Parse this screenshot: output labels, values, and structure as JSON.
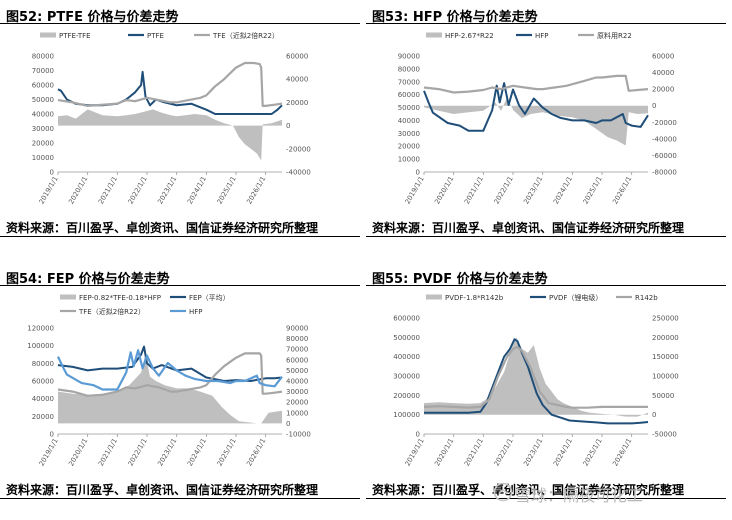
{
  "panels": [
    {
      "title": "图52: PTFE 价格与价差走势",
      "source": "资料来源：百川盈孚、卓创资讯、国信证券经济研究所整理"
    },
    {
      "title": "图53: HFP 价格与价差走势",
      "source": "资料来源：百川盈孚、卓创资讯、国信证券经济研究所整理"
    },
    {
      "title": "图54: FEP 价格与价差走势",
      "source": "资料来源：百川盈孚、卓创资讯、国信证券经济研究所整理"
    },
    {
      "title": "图55: PVDF 价格与价差走势",
      "source": "资料来源：百川盈孚、卓创资讯、国信证券经济研究所整理"
    }
  ],
  "watermark": "雪球：隔夜可化工",
  "colors": {
    "navy": "#1f4e79",
    "gray_area": "#bfbfbf",
    "gray_line": "#a6a6a6",
    "light_blue": "#5b9bd5"
  },
  "chart_data": [
    {
      "type": "area",
      "x_ticks": [
        "2019/1/1",
        "2020/1/1",
        "2021/1/1",
        "2022/1/1",
        "2023/1/1",
        "2024/1/1",
        "2025/1/1",
        "2026/1/1"
      ],
      "left_axis": {
        "ticks": [
          0,
          10000,
          20000,
          30000,
          40000,
          50000,
          60000,
          70000,
          80000
        ],
        "ylim": [
          0,
          80000
        ]
      },
      "right_axis": {
        "ticks": [
          -40000,
          -20000,
          0,
          20000,
          40000,
          60000
        ],
        "ylim": [
          -40000,
          60000
        ]
      },
      "legend_position": "top",
      "x_range": [
        2019.0,
        2026.55
      ],
      "series": [
        {
          "name": "PTFE-TFE",
          "style": "area",
          "axis": "right",
          "x": [
            2019.0,
            2019.3,
            2019.6,
            2020.0,
            2020.5,
            2021.0,
            2021.3,
            2021.6,
            2021.9,
            2022.2,
            2022.5,
            2022.8,
            2023.0,
            2023.3,
            2023.6,
            2024.0,
            2024.3,
            2024.6,
            2024.9,
            2025.1,
            2025.3,
            2025.5,
            2025.7,
            2025.85,
            2025.9,
            2026.2,
            2026.55
          ],
          "values": [
            8000,
            9000,
            6000,
            14000,
            9000,
            8000,
            9000,
            10000,
            12000,
            14000,
            11000,
            9000,
            8000,
            9000,
            10000,
            9000,
            5000,
            2000,
            0,
            -10000,
            -16000,
            -20000,
            -24000,
            -30000,
            1000,
            2000,
            5000
          ]
        },
        {
          "name": "PTFE",
          "style": "line",
          "axis": "left",
          "x": [
            2019.0,
            2019.1,
            2019.3,
            2019.6,
            2020.0,
            2020.5,
            2021.0,
            2021.3,
            2021.6,
            2021.8,
            2021.85,
            2021.95,
            2022.1,
            2022.3,
            2022.6,
            2023.0,
            2023.5,
            2024.0,
            2024.3,
            2024.6,
            2025.0,
            2025.3,
            2025.6,
            2025.9,
            2026.2,
            2026.4,
            2026.55
          ],
          "values": [
            57000,
            56000,
            50000,
            47000,
            46000,
            46000,
            47000,
            50000,
            55000,
            60000,
            69000,
            52000,
            46000,
            50000,
            48000,
            46000,
            47000,
            43000,
            40000,
            40000,
            40000,
            40000,
            40000,
            40000,
            40000,
            43000,
            46000
          ]
        },
        {
          "name": "TFE（近拟2倍R22）",
          "style": "line",
          "axis": "right",
          "x": [
            2019.0,
            2019.5,
            2020.0,
            2020.5,
            2021.0,
            2021.3,
            2021.6,
            2022.0,
            2022.4,
            2022.8,
            2023.0,
            2023.4,
            2023.8,
            2024.0,
            2024.3,
            2024.6,
            2025.0,
            2025.3,
            2025.6,
            2025.8,
            2025.85,
            2025.9,
            2026.0,
            2026.3,
            2026.55
          ],
          "values": [
            22000,
            20000,
            17000,
            18000,
            19000,
            22000,
            21000,
            24000,
            22000,
            20000,
            20000,
            22000,
            24000,
            26000,
            34000,
            40000,
            50000,
            54000,
            54000,
            53000,
            50000,
            17000,
            17000,
            18000,
            19000
          ]
        }
      ]
    },
    {
      "type": "area",
      "x_ticks": [
        "2019/1/1",
        "2020/1/1",
        "2021/1/1",
        "2022/1/1",
        "2023/1/1",
        "2024/1/1",
        "2025/1/1",
        "2026/1/1"
      ],
      "left_axis": {
        "ticks": [
          0,
          10000,
          20000,
          30000,
          40000,
          50000,
          60000,
          70000,
          80000,
          90000
        ],
        "ylim": [
          0,
          90000
        ]
      },
      "right_axis": {
        "ticks": [
          -80000,
          -60000,
          -40000,
          -20000,
          0,
          20000,
          40000,
          60000
        ],
        "ylim": [
          -80000,
          60000
        ]
      },
      "legend_position": "top",
      "x_range": [
        2019.0,
        2026.55
      ],
      "series": [
        {
          "name": "HFP-2.67*R22",
          "style": "area",
          "axis": "right",
          "x": [
            2019.0,
            2019.5,
            2020.0,
            2020.5,
            2021.0,
            2021.4,
            2021.6,
            2021.8,
            2022.0,
            2022.3,
            2022.6,
            2023.0,
            2023.5,
            2024.0,
            2024.4,
            2024.8,
            2025.2,
            2025.5,
            2025.8,
            2025.9,
            2026.2,
            2026.55
          ],
          "values": [
            -2000,
            -6000,
            -10000,
            -8000,
            -6000,
            4000,
            -6000,
            10000,
            -5000,
            -15000,
            -10000,
            -8000,
            -12000,
            -14000,
            -18000,
            -28000,
            -38000,
            -42000,
            -48000,
            -8000,
            -10000,
            -9000
          ]
        },
        {
          "name": "HFP",
          "style": "line",
          "axis": "left",
          "x": [
            2019.0,
            2019.15,
            2019.3,
            2019.8,
            2020.2,
            2020.5,
            2021.0,
            2021.3,
            2021.45,
            2021.55,
            2021.7,
            2021.85,
            2022.0,
            2022.2,
            2022.4,
            2022.7,
            2023.0,
            2023.3,
            2023.6,
            2024.0,
            2024.4,
            2024.8,
            2025.0,
            2025.3,
            2025.7,
            2025.8,
            2026.0,
            2026.3,
            2026.55
          ],
          "values": [
            63000,
            54000,
            46000,
            38000,
            36000,
            32000,
            32000,
            48000,
            67000,
            54000,
            69000,
            52000,
            64000,
            52000,
            45000,
            57000,
            50000,
            45000,
            42000,
            40000,
            40000,
            38000,
            40000,
            40000,
            45000,
            38000,
            36000,
            35000,
            44000
          ]
        },
        {
          "name": "原料用R22",
          "style": "line",
          "axis": "right",
          "x": [
            2019.0,
            2019.5,
            2020.0,
            2020.5,
            2021.0,
            2021.3,
            2021.6,
            2022.0,
            2022.4,
            2022.8,
            2023.0,
            2023.4,
            2023.8,
            2024.0,
            2024.4,
            2024.8,
            2025.0,
            2025.5,
            2025.8,
            2025.9,
            2026.2,
            2026.55
          ],
          "values": [
            22000,
            20000,
            16000,
            17000,
            19000,
            22000,
            20000,
            24000,
            22000,
            20000,
            20000,
            22000,
            24000,
            26000,
            30000,
            34000,
            34000,
            36000,
            36000,
            18000,
            19000,
            20000
          ]
        }
      ]
    },
    {
      "type": "area",
      "x_ticks": [
        "2019/1/1",
        "2020/1/1",
        "2021/1/1",
        "2022/1/1",
        "2023/1/1",
        "2024/1/1",
        "2025/1/1",
        "2026/1/1"
      ],
      "left_axis": {
        "ticks": [
          0,
          20000,
          40000,
          60000,
          80000,
          100000,
          120000
        ],
        "ylim": [
          0,
          120000
        ]
      },
      "right_axis": {
        "ticks": [
          -10000,
          0,
          10000,
          20000,
          30000,
          40000,
          50000,
          60000,
          70000,
          80000,
          90000
        ],
        "ylim": [
          -10000,
          90000
        ]
      },
      "legend_position": "top",
      "x_range": [
        2019.0,
        2026.55
      ],
      "series": [
        {
          "name": "FEP-0.82*TFE-0.18*HFP",
          "style": "area",
          "axis": "right",
          "x": [
            2019.0,
            2019.5,
            2020.0,
            2020.5,
            2021.0,
            2021.4,
            2021.8,
            2021.95,
            2022.1,
            2022.3,
            2022.6,
            2023.0,
            2023.4,
            2023.8,
            2024.2,
            2024.5,
            2024.8,
            2025.1,
            2025.4,
            2025.7,
            2025.85,
            2026.1,
            2026.55
          ],
          "values": [
            30000,
            28000,
            27000,
            28000,
            31000,
            36000,
            48000,
            66000,
            44000,
            40000,
            36000,
            33000,
            33000,
            30000,
            26000,
            16000,
            8000,
            2000,
            1000,
            0,
            0,
            10000,
            12000
          ]
        },
        {
          "name": "FEP（平均）",
          "style": "line",
          "axis": "left",
          "x": [
            2019.0,
            2019.5,
            2020.0,
            2020.5,
            2021.0,
            2021.5,
            2021.8,
            2021.9,
            2022.0,
            2022.2,
            2022.5,
            2023.0,
            2023.5,
            2024.0,
            2024.3,
            2024.6,
            2025.0,
            2025.5,
            2026.0,
            2026.3,
            2026.55
          ],
          "values": [
            78000,
            76000,
            72000,
            74000,
            74000,
            76000,
            90000,
            99000,
            80000,
            74000,
            78000,
            72000,
            74000,
            64000,
            62000,
            60000,
            61000,
            60000,
            63000,
            63000,
            64000
          ]
        },
        {
          "name": "TFE（近拟2倍R22）",
          "style": "line",
          "axis": "right",
          "x": [
            2019.0,
            2019.5,
            2020.0,
            2020.5,
            2021.0,
            2021.3,
            2021.6,
            2022.0,
            2022.4,
            2022.8,
            2023.0,
            2023.4,
            2023.8,
            2024.0,
            2024.3,
            2024.6,
            2025.0,
            2025.3,
            2025.6,
            2025.8,
            2025.85,
            2025.9,
            2026.0,
            2026.3,
            2026.55
          ],
          "values": [
            32000,
            30000,
            26000,
            27000,
            30000,
            34000,
            33000,
            36000,
            34000,
            30000,
            30000,
            32000,
            34000,
            36000,
            46000,
            54000,
            62000,
            66000,
            66000,
            66000,
            64000,
            28000,
            28000,
            29000,
            30000
          ]
        },
        {
          "name": "HFP",
          "style": "line",
          "axis": "right",
          "color": "#5b9bd5",
          "x": [
            2019.0,
            2019.15,
            2019.3,
            2019.8,
            2020.2,
            2020.5,
            2021.0,
            2021.3,
            2021.45,
            2021.55,
            2021.7,
            2021.85,
            2022.0,
            2022.2,
            2022.4,
            2022.7,
            2023.0,
            2023.3,
            2023.6,
            2024.0,
            2024.4,
            2024.8,
            2025.0,
            2025.3,
            2025.7,
            2025.8,
            2026.0,
            2026.3,
            2026.55
          ],
          "values": [
            63000,
            54000,
            46000,
            38000,
            36000,
            32000,
            32000,
            48000,
            67000,
            54000,
            69000,
            52000,
            64000,
            52000,
            45000,
            57000,
            50000,
            45000,
            42000,
            40000,
            40000,
            38000,
            40000,
            40000,
            45000,
            38000,
            36000,
            35000,
            44000
          ]
        }
      ]
    },
    {
      "type": "area",
      "x_ticks": [
        "2019/1/1",
        "2020/1/1",
        "2021/1/1",
        "2022/1/1",
        "2023/1/1",
        "2024/1/1",
        "2025/1/1",
        "2026/1/1"
      ],
      "left_axis": {
        "ticks": [
          0,
          100000,
          200000,
          300000,
          400000,
          500000,
          600000
        ],
        "ylim": [
          0,
          600000
        ]
      },
      "right_axis": {
        "ticks": [
          -50000,
          0,
          50000,
          100000,
          150000,
          200000,
          250000
        ],
        "ylim": [
          -50000,
          250000
        ]
      },
      "legend_position": "top",
      "x_range": [
        2019.0,
        2026.55
      ],
      "series": [
        {
          "name": "PVDF-1.8*R142b",
          "style": "area",
          "axis": "right",
          "x": [
            2019.0,
            2019.5,
            2020.0,
            2020.5,
            2020.9,
            2021.1,
            2021.4,
            2021.7,
            2021.9,
            2022.1,
            2022.3,
            2022.5,
            2022.7,
            2022.9,
            2023.1,
            2023.3,
            2023.5,
            2023.7,
            2024.0,
            2024.3,
            2024.6,
            2025.0,
            2025.4,
            2025.8,
            2026.2,
            2026.55
          ],
          "values": [
            30000,
            32000,
            30000,
            28000,
            30000,
            40000,
            70000,
            110000,
            160000,
            200000,
            170000,
            160000,
            180000,
            120000,
            80000,
            60000,
            40000,
            30000,
            20000,
            10000,
            5000,
            2000,
            0,
            -5000,
            -5000,
            5000
          ]
        },
        {
          "name": "PVDF（锂电级）",
          "style": "line",
          "axis": "left",
          "x": [
            2019.0,
            2019.5,
            2020.0,
            2020.5,
            2020.9,
            2021.1,
            2021.4,
            2021.7,
            2021.9,
            2022.05,
            2022.15,
            2022.3,
            2022.5,
            2022.8,
            2023.0,
            2023.3,
            2023.6,
            2023.9,
            2024.3,
            2024.8,
            2025.2,
            2025.6,
            2026.0,
            2026.3,
            2026.55
          ],
          "values": [
            110000,
            110000,
            110000,
            110000,
            115000,
            160000,
            280000,
            400000,
            440000,
            490000,
            480000,
            420000,
            350000,
            210000,
            150000,
            100000,
            85000,
            70000,
            65000,
            60000,
            55000,
            55000,
            55000,
            58000,
            62000
          ]
        },
        {
          "name": "R142b",
          "style": "line",
          "axis": "right",
          "x": [
            2019.0,
            2019.5,
            2020.0,
            2020.5,
            2020.9,
            2021.2,
            2021.5,
            2021.8,
            2022.0,
            2022.15,
            2022.3,
            2022.6,
            2022.9,
            2023.2,
            2023.5,
            2023.8,
            2024.0,
            2024.5,
            2025.0,
            2025.5,
            2026.0,
            2026.55
          ],
          "values": [
            20000,
            22000,
            20000,
            18000,
            20000,
            40000,
            100000,
            150000,
            170000,
            175000,
            165000,
            120000,
            60000,
            30000,
            25000,
            20000,
            18000,
            18000,
            20000,
            20000,
            20000,
            20000
          ]
        }
      ]
    }
  ]
}
